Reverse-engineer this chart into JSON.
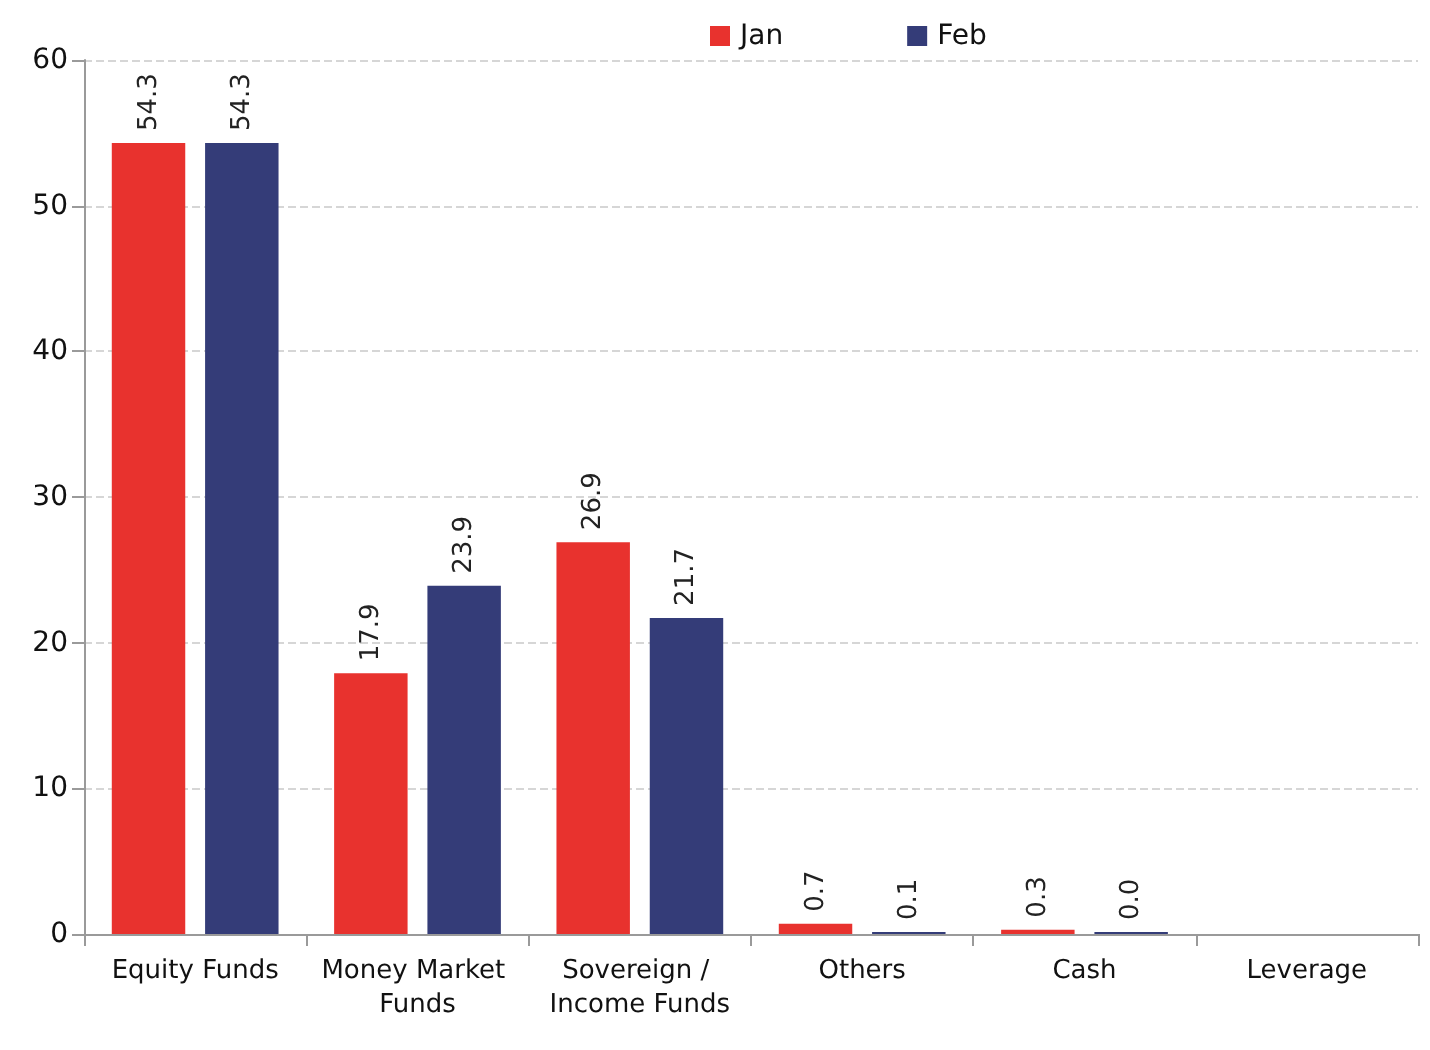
{
  "chart_data": {
    "type": "bar",
    "categories": [
      "Equity Funds",
      "Money Market Funds",
      "Sovereign / Income Funds",
      "Others",
      "Cash",
      "Leverage"
    ],
    "series": [
      {
        "name": "Jan",
        "color": "#e8322e",
        "values": [
          54.3,
          17.9,
          26.9,
          0.7,
          0.3,
          null
        ],
        "value_labels": [
          "54.3",
          "17.9",
          "26.9",
          "0.7",
          "0.3",
          null
        ]
      },
      {
        "name": "Feb",
        "color": "#343c78",
        "values": [
          54.3,
          23.9,
          21.7,
          0.1,
          0.0,
          null
        ],
        "value_labels": [
          "54.3",
          "23.9",
          "21.7",
          "0.1",
          "0.0",
          null
        ]
      }
    ],
    "ylim": [
      0,
      60
    ],
    "yticks": [
      0,
      10,
      20,
      30,
      40,
      50,
      60
    ],
    "grid": "y",
    "legend": "top"
  }
}
